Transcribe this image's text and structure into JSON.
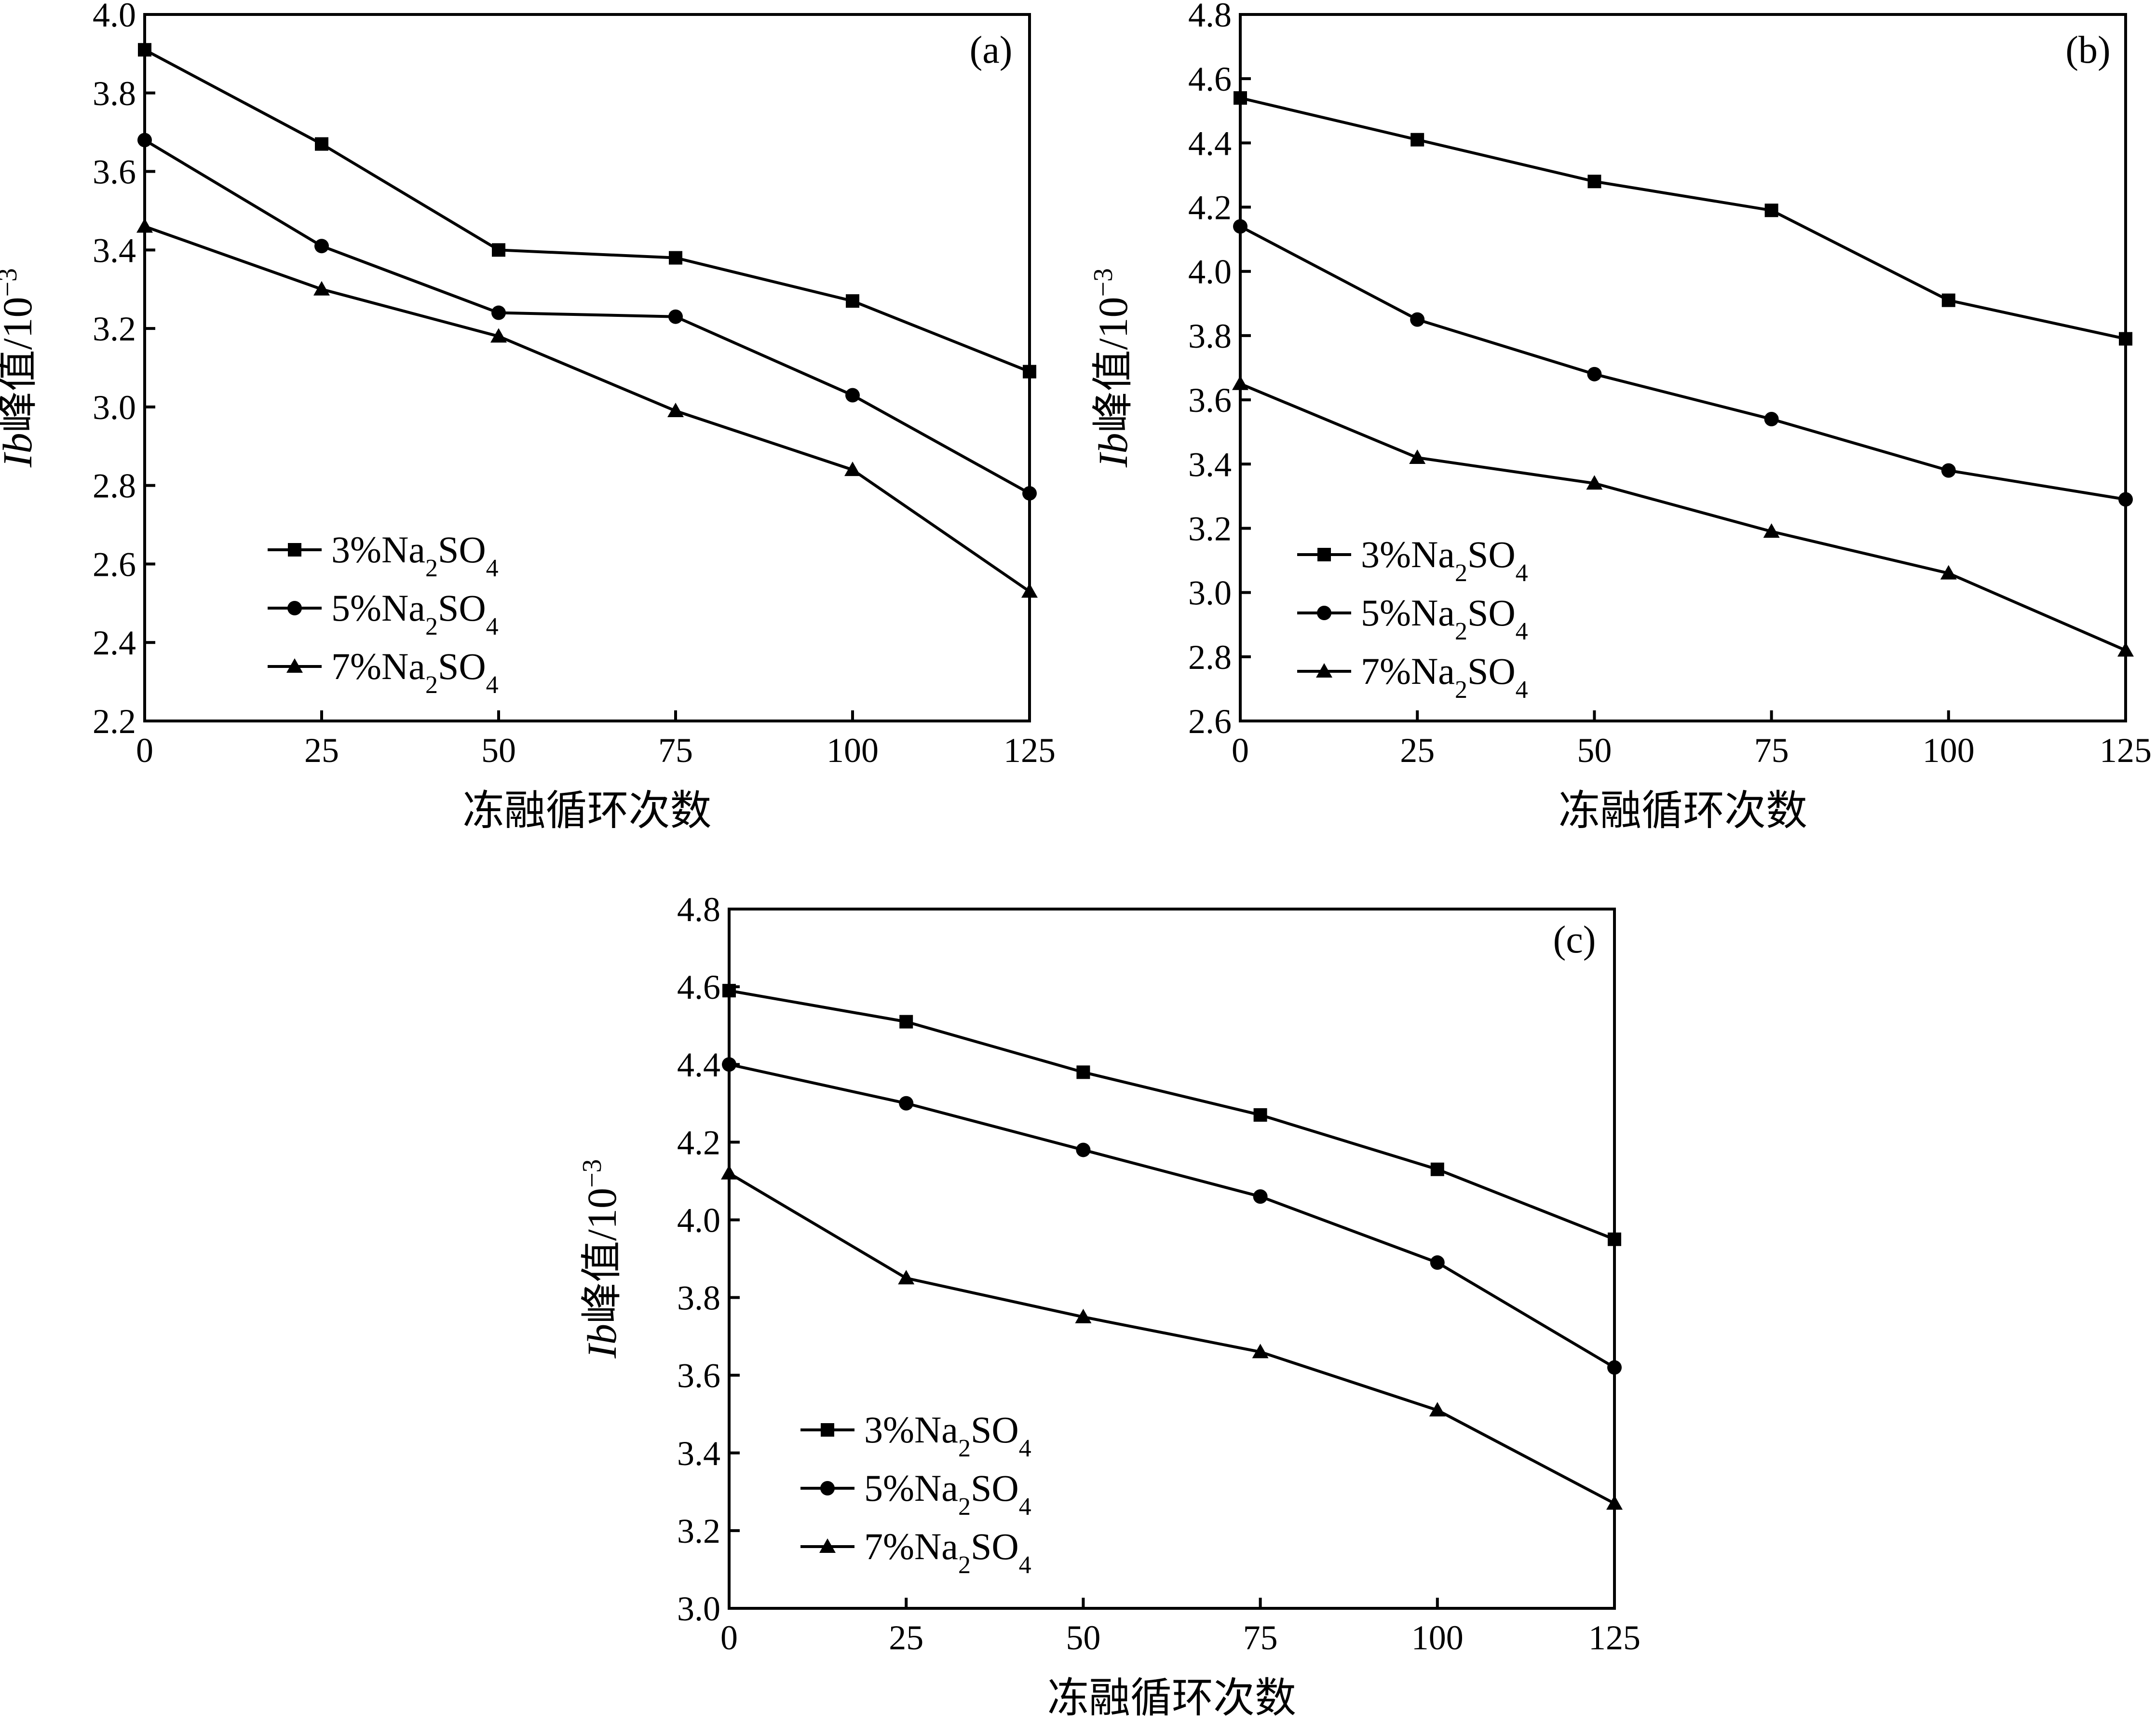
{
  "chart_data": [
    {
      "type": "line",
      "panel_label": "(a)",
      "xlabel": "冻融循环次数",
      "ylabel_italic": "Ib",
      "ylabel_rest": "峰值/10",
      "ylabel_exp": "−3",
      "x": [
        0,
        25,
        50,
        75,
        100,
        125
      ],
      "xticks": [
        "0",
        "25",
        "50",
        "75",
        "100",
        "125"
      ],
      "xlim": [
        0,
        125
      ],
      "ylim": [
        2.2,
        4.0
      ],
      "yticks": [
        "2.2",
        "2.4",
        "2.6",
        "2.8",
        "3.0",
        "3.2",
        "3.4",
        "3.6",
        "3.8",
        "4.0"
      ],
      "legend": "lower-left",
      "grid": false,
      "series": [
        {
          "marker": "square",
          "label_pre": "3%Na",
          "label_sub1": "2",
          "label_mid": "SO",
          "label_sub2": "4",
          "values": [
            3.91,
            3.67,
            3.4,
            3.38,
            3.27,
            3.09
          ]
        },
        {
          "marker": "circle",
          "label_pre": "5%Na",
          "label_sub1": "2",
          "label_mid": "SO",
          "label_sub2": "4",
          "values": [
            3.68,
            3.41,
            3.24,
            3.23,
            3.03,
            2.78
          ]
        },
        {
          "marker": "triangle",
          "label_pre": "7%Na",
          "label_sub1": "2",
          "label_mid": "SO",
          "label_sub2": "4",
          "values": [
            3.46,
            3.3,
            3.18,
            2.99,
            2.84,
            2.53
          ]
        }
      ]
    },
    {
      "type": "line",
      "panel_label": "(b)",
      "xlabel": "冻融循环次数",
      "ylabel_italic": "Ib",
      "ylabel_rest": "峰值/10",
      "ylabel_exp": "−3",
      "x": [
        0,
        25,
        50,
        75,
        100,
        125
      ],
      "xticks": [
        "0",
        "25",
        "50",
        "75",
        "100",
        "125"
      ],
      "xlim": [
        0,
        125
      ],
      "ylim": [
        2.6,
        4.8
      ],
      "yticks": [
        "2.6",
        "2.8",
        "3.0",
        "3.2",
        "3.4",
        "3.6",
        "3.8",
        "4.0",
        "4.2",
        "4.4",
        "4.6",
        "4.8"
      ],
      "legend": "lower-left",
      "grid": false,
      "series": [
        {
          "marker": "square",
          "label_pre": "3%Na",
          "label_sub1": "2",
          "label_mid": "SO",
          "label_sub2": "4",
          "values": [
            4.54,
            4.41,
            4.28,
            4.19,
            3.91,
            3.79
          ]
        },
        {
          "marker": "circle",
          "label_pre": "5%Na",
          "label_sub1": "2",
          "label_mid": "SO",
          "label_sub2": "4",
          "values": [
            4.14,
            3.85,
            3.68,
            3.54,
            3.38,
            3.29
          ]
        },
        {
          "marker": "triangle",
          "label_pre": "7%Na",
          "label_sub1": "2",
          "label_mid": "SO",
          "label_sub2": "4",
          "values": [
            3.65,
            3.42,
            3.34,
            3.19,
            3.06,
            2.82
          ]
        }
      ]
    },
    {
      "type": "line",
      "panel_label": "(c)",
      "xlabel": "冻融循环次数",
      "ylabel_italic": "Ib",
      "ylabel_rest": "峰值/10",
      "ylabel_exp": "−3",
      "x": [
        0,
        25,
        50,
        75,
        100,
        125
      ],
      "xticks": [
        "0",
        "25",
        "50",
        "75",
        "100",
        "125"
      ],
      "xlim": [
        0,
        125
      ],
      "ylim": [
        3.0,
        4.8
      ],
      "yticks": [
        "3.0",
        "3.2",
        "3.4",
        "3.6",
        "3.8",
        "4.0",
        "4.2",
        "4.4",
        "4.6",
        "4.8"
      ],
      "legend": "lower-left",
      "grid": false,
      "series": [
        {
          "marker": "square",
          "label_pre": "3%Na",
          "label_sub1": "2",
          "label_mid": "SO",
          "label_sub2": "4",
          "values": [
            4.59,
            4.51,
            4.38,
            4.27,
            4.13,
            3.95
          ]
        },
        {
          "marker": "circle",
          "label_pre": "5%Na",
          "label_sub1": "2",
          "label_mid": "SO",
          "label_sub2": "4",
          "values": [
            4.4,
            4.3,
            4.18,
            4.06,
            3.89,
            3.62
          ]
        },
        {
          "marker": "triangle",
          "label_pre": "7%Na",
          "label_sub1": "2",
          "label_mid": "SO",
          "label_sub2": "4",
          "values": [
            4.12,
            3.85,
            3.75,
            3.66,
            3.51,
            3.27
          ]
        }
      ]
    }
  ]
}
